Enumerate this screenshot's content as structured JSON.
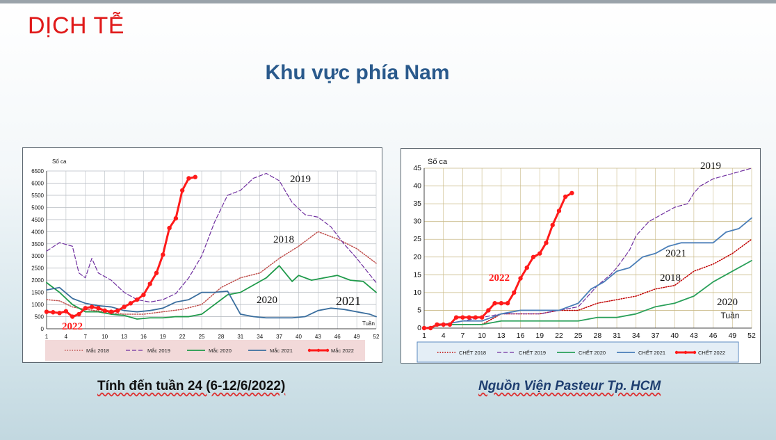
{
  "slide": {
    "title": "DỊCH TỄ",
    "subtitle": "Khu vực phía Nam",
    "caption_left": "Tính đến tuần 24 (6-12/6/2022)",
    "caption_right": "Nguồn Viện Pasteur Tp. HCM",
    "colors": {
      "title": "#e01919",
      "subtitle": "#2a5a8c"
    }
  },
  "chart_data": [
    {
      "type": "line",
      "ylabel": "Số ca",
      "xlabel": "Tuần",
      "ylim": [
        0,
        6500
      ],
      "yticks": [
        0,
        500,
        1000,
        1500,
        2000,
        2500,
        3000,
        3500,
        4000,
        4500,
        5000,
        5500,
        6000,
        6500
      ],
      "xlim": [
        1,
        52
      ],
      "xticks": [
        1,
        4,
        7,
        10,
        13,
        16,
        19,
        22,
        25,
        28,
        31,
        34,
        37,
        40,
        43,
        46,
        49,
        52
      ],
      "grid": true,
      "legend_position": "bottom",
      "series": [
        {
          "name": "Mắc 2018",
          "label": "2018",
          "color": "#c0504d",
          "style": "dotted",
          "x": [
            1,
            3,
            5,
            7,
            10,
            13,
            16,
            19,
            22,
            25,
            28,
            31,
            34,
            37,
            40,
            43,
            46,
            49,
            52
          ],
          "y": [
            1200,
            1150,
            900,
            800,
            700,
            600,
            600,
            700,
            800,
            1000,
            1700,
            2100,
            2300,
            2900,
            3400,
            4000,
            3700,
            3300,
            2700
          ]
        },
        {
          "name": "Mắc 2019",
          "label": "2019",
          "color": "#7030a0",
          "style": "dashed",
          "x": [
            1,
            3,
            5,
            6,
            7,
            8,
            9,
            11,
            13,
            15,
            17,
            19,
            21,
            23,
            25,
            27,
            29,
            31,
            33,
            35,
            37,
            39,
            41,
            43,
            45,
            47,
            49,
            52
          ],
          "y": [
            3200,
            3550,
            3400,
            2300,
            2100,
            2900,
            2300,
            2000,
            1500,
            1200,
            1100,
            1200,
            1450,
            2100,
            3000,
            4400,
            5500,
            5700,
            6200,
            6400,
            6100,
            5200,
            4700,
            4600,
            4200,
            3500,
            2900,
            1900
          ]
        },
        {
          "name": "Mắc 2020",
          "label": "2020",
          "color": "#1f9a4a",
          "style": "solid",
          "x": [
            1,
            3,
            5,
            7,
            9,
            11,
            13,
            15,
            17,
            19,
            21,
            23,
            25,
            27,
            29,
            31,
            33,
            35,
            37,
            39,
            40,
            42,
            44,
            46,
            48,
            50,
            52
          ],
          "y": [
            1900,
            1500,
            1000,
            700,
            700,
            600,
            550,
            400,
            450,
            450,
            500,
            500,
            600,
            1000,
            1400,
            1500,
            1800,
            2100,
            2600,
            1950,
            2200,
            2000,
            2100,
            2200,
            2000,
            1950,
            1500
          ]
        },
        {
          "name": "Mắc 2021",
          "label": "2021",
          "color": "#3a6e9e",
          "style": "solid",
          "x": [
            1,
            3,
            5,
            7,
            9,
            11,
            13,
            15,
            17,
            19,
            21,
            23,
            25,
            27,
            29,
            31,
            33,
            35,
            37,
            39,
            41,
            43,
            45,
            47,
            49,
            51,
            52
          ],
          "y": [
            1600,
            1700,
            1250,
            1050,
            950,
            900,
            750,
            700,
            750,
            850,
            1100,
            1200,
            1500,
            1500,
            1550,
            600,
            500,
            450,
            450,
            450,
            500,
            750,
            850,
            800,
            700,
            600,
            500
          ]
        },
        {
          "name": "Mắc 2022",
          "label": "2022",
          "color": "#ff1a1a",
          "style": "bold-markers",
          "x": [
            1,
            2,
            3,
            4,
            5,
            6,
            7,
            8,
            9,
            10,
            11,
            12,
            13,
            14,
            15,
            16,
            17,
            18,
            19,
            20,
            21,
            22,
            23,
            24
          ],
          "y": [
            700,
            680,
            650,
            720,
            500,
            600,
            850,
            900,
            850,
            750,
            700,
            750,
            900,
            1050,
            1200,
            1400,
            1850,
            2300,
            3050,
            4150,
            4550,
            5700,
            6200,
            6250
          ]
        }
      ],
      "legend": [
        "Mắc 2018",
        "Mắc 2019",
        "Mắc 2020",
        "Mắc 2021",
        "Mắc 2022"
      ]
    },
    {
      "type": "line",
      "ylabel": "Số ca",
      "xlabel": "Tuần",
      "ylim": [
        0,
        45
      ],
      "yticks": [
        0,
        5,
        10,
        15,
        20,
        25,
        30,
        35,
        40,
        45
      ],
      "xlim": [
        1,
        52
      ],
      "xticks": [
        1,
        4,
        7,
        10,
        13,
        16,
        19,
        22,
        25,
        28,
        31,
        34,
        37,
        40,
        43,
        46,
        49,
        52
      ],
      "grid": true,
      "legend_position": "bottom",
      "series": [
        {
          "name": "CHẾT 2018",
          "label": "2018",
          "color": "#c00000",
          "style": "dotted",
          "x": [
            1,
            4,
            7,
            10,
            13,
            16,
            19,
            22,
            25,
            28,
            31,
            34,
            37,
            40,
            43,
            46,
            49,
            52
          ],
          "y": [
            0,
            1,
            1,
            1,
            4,
            4,
            4,
            5,
            5,
            7,
            8,
            9,
            11,
            12,
            16,
            18,
            21,
            25
          ]
        },
        {
          "name": "CHẾT 2019",
          "label": "2019",
          "color": "#7030a0",
          "style": "dashed",
          "x": [
            1,
            4,
            7,
            10,
            13,
            16,
            19,
            22,
            25,
            28,
            30,
            31,
            33,
            34,
            36,
            38,
            40,
            42,
            43,
            44,
            46,
            48,
            50,
            52
          ],
          "y": [
            0,
            1,
            2,
            3,
            4,
            4,
            4,
            5,
            6,
            12,
            15,
            17,
            22,
            26,
            30,
            32,
            34,
            35,
            38,
            40,
            42,
            43,
            44,
            45
          ]
        },
        {
          "name": "CHẾT 2020",
          "label": "2020",
          "color": "#2aa05a",
          "style": "solid",
          "x": [
            1,
            4,
            7,
            10,
            13,
            16,
            19,
            22,
            25,
            28,
            31,
            34,
            37,
            40,
            43,
            46,
            49,
            52
          ],
          "y": [
            0,
            1,
            1,
            1,
            2,
            2,
            2,
            2,
            2,
            3,
            3,
            4,
            6,
            7,
            9,
            13,
            16,
            19
          ]
        },
        {
          "name": "CHẾT 2021",
          "label": "2021",
          "color": "#4a7eb8",
          "style": "solid",
          "x": [
            1,
            4,
            7,
            10,
            13,
            16,
            19,
            22,
            25,
            27,
            29,
            31,
            33,
            35,
            37,
            39,
            41,
            43,
            46,
            48,
            50,
            52
          ],
          "y": [
            0,
            1,
            2,
            2,
            4,
            5,
            5,
            5,
            7,
            11,
            13,
            16,
            17,
            20,
            21,
            23,
            24,
            24,
            24,
            27,
            28,
            31
          ]
        },
        {
          "name": "CHẾT 2022",
          "label": "2022",
          "color": "#ff1a1a",
          "style": "bold-markers",
          "x": [
            1,
            2,
            3,
            4,
            5,
            6,
            7,
            8,
            9,
            10,
            11,
            12,
            13,
            14,
            15,
            16,
            17,
            18,
            19,
            20,
            21,
            22,
            23,
            24
          ],
          "y": [
            0,
            0,
            1,
            1,
            1,
            3,
            3,
            3,
            3,
            3,
            5,
            7,
            7,
            7,
            10,
            14,
            17,
            20,
            21,
            24,
            29,
            33,
            37,
            38
          ]
        }
      ],
      "legend": [
        "CHẾT 2018",
        "CHẾT 2019",
        "CHẾT 2020",
        "CHẾT 2021",
        "CHẾT 2022"
      ]
    }
  ]
}
